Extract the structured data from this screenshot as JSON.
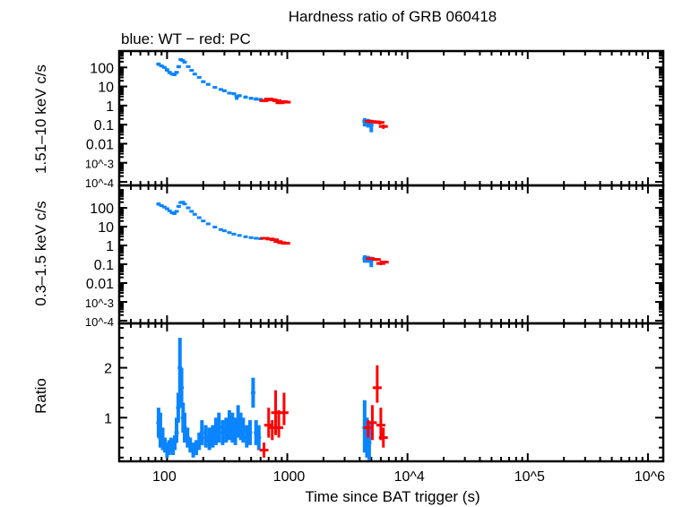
{
  "chart_data": {
    "type": "scatter",
    "title": "Hardness ratio of GRB 060418",
    "subtitle": "blue: WT − red: PC",
    "xlabel": "Time since BAT trigger (s)",
    "xscale": "log",
    "xlim": [
      40,
      1340000
    ],
    "x_tick_labels": [
      "100",
      "1000",
      "10^4",
      "10^5",
      "10^6"
    ],
    "colors": {
      "WT": "#0a84ff",
      "PC": "#ff0000"
    },
    "panels": [
      {
        "ylabel": "1.51–10 keV c/s",
        "yscale": "log",
        "ylim": [
          6.5e-05,
          720
        ],
        "y_tick_labels": [
          "100",
          "10",
          "1",
          "0.1",
          "0.01",
          "10^-3",
          "10^-4"
        ],
        "series": [
          {
            "mode": "WT",
            "points": [
              [
                85,
                150,
                120,
                180
              ],
              [
                90,
                120,
                100,
                140
              ],
              [
                95,
                100,
                85,
                115
              ],
              [
                100,
                75,
                60,
                90
              ],
              [
                105,
                55,
                45,
                65
              ],
              [
                110,
                45,
                38,
                52
              ],
              [
                115,
                42,
                35,
                50
              ],
              [
                120,
                55,
                45,
                65
              ],
              [
                125,
                110,
                90,
                130
              ],
              [
                130,
                260,
                220,
                300
              ],
              [
                135,
                230,
                200,
                260
              ],
              [
                140,
                190,
                160,
                220
              ],
              [
                150,
                110,
                95,
                125
              ],
              [
                160,
                70,
                60,
                80
              ],
              [
                170,
                45,
                38,
                52
              ],
              [
                185,
                30,
                26,
                34
              ],
              [
                200,
                18,
                15,
                21
              ],
              [
                220,
                13,
                11,
                15
              ],
              [
                250,
                9,
                8,
                10.5
              ],
              [
                280,
                7,
                6,
                8
              ],
              [
                300,
                6,
                5,
                7
              ],
              [
                330,
                4.5,
                3.8,
                5.2
              ],
              [
                360,
                4.2,
                3.5,
                5
              ],
              [
                380,
                3,
                2,
                3.5
              ],
              [
                400,
                3.3,
                2.8,
                3.9
              ],
              [
                450,
                2.8,
                2.3,
                3.3
              ],
              [
                500,
                2.4,
                2,
                2.9
              ],
              [
                550,
                2.2,
                1.8,
                2.7
              ],
              [
                600,
                2.1,
                1.7,
                2.5
              ]
            ]
          },
          {
            "mode": "PC",
            "points": [
              [
                640,
                1.8,
                1.5,
                2.1
              ],
              [
                700,
                2.2,
                1.9,
                2.6
              ],
              [
                760,
                2.0,
                1.7,
                2.4
              ],
              [
                820,
                1.8,
                1.5,
                2.1
              ],
              [
                870,
                1.4,
                1.2,
                1.7
              ],
              [
                930,
                1.6,
                1.3,
                1.9
              ],
              [
                980,
                1.5,
                1.3,
                1.8
              ]
            ]
          },
          {
            "mode": "WT",
            "points": [
              [
                4400,
                0.15,
                0.08,
                0.22
              ],
              [
                4700,
                0.14,
                0.07,
                0.2
              ],
              [
                5000,
                0.1,
                0.04,
                0.18
              ]
            ]
          },
          {
            "mode": "PC",
            "points": [
              [
                4800,
                0.15,
                0.12,
                0.18
              ],
              [
                5400,
                0.14,
                0.11,
                0.17
              ],
              [
                5900,
                0.13,
                0.1,
                0.16
              ],
              [
                6300,
                0.08,
                0.06,
                0.1
              ]
            ]
          }
        ]
      },
      {
        "ylabel": "0.3–1.5 keV c/s",
        "yscale": "log",
        "ylim": [
          7.2e-05,
          1550
        ],
        "y_tick_labels": [
          "100",
          "10",
          "1",
          "0.1",
          "0.01",
          "10^-3",
          "10^-4"
        ],
        "series": [
          {
            "mode": "WT",
            "points": [
              [
                85,
                160,
                130,
                190
              ],
              [
                90,
                130,
                110,
                150
              ],
              [
                95,
                110,
                95,
                125
              ],
              [
                100,
                90,
                75,
                105
              ],
              [
                105,
                70,
                60,
                80
              ],
              [
                110,
                55,
                46,
                64
              ],
              [
                115,
                50,
                42,
                58
              ],
              [
                120,
                65,
                55,
                75
              ],
              [
                125,
                120,
                100,
                140
              ],
              [
                130,
                190,
                165,
                215
              ],
              [
                135,
                200,
                175,
                225
              ],
              [
                140,
                160,
                140,
                180
              ],
              [
                150,
                100,
                88,
                112
              ],
              [
                160,
                65,
                57,
                73
              ],
              [
                170,
                45,
                40,
                50
              ],
              [
                185,
                30,
                27,
                33
              ],
              [
                200,
                20,
                18,
                22
              ],
              [
                220,
                14,
                12.5,
                15.5
              ],
              [
                250,
                9.5,
                8.5,
                10.5
              ],
              [
                280,
                7,
                6.3,
                7.7
              ],
              [
                300,
                6,
                5.4,
                6.6
              ],
              [
                330,
                4.8,
                4.2,
                5.4
              ],
              [
                360,
                4.0,
                3.5,
                4.5
              ],
              [
                400,
                3.4,
                3,
                3.8
              ],
              [
                450,
                2.9,
                2.6,
                3.2
              ],
              [
                500,
                2.6,
                2.3,
                2.9
              ],
              [
                550,
                2.4,
                2.1,
                2.7
              ],
              [
                600,
                2.3,
                2.0,
                2.6
              ]
            ]
          },
          {
            "mode": "PC",
            "points": [
              [
                650,
                2.4,
                2.2,
                2.6
              ],
              [
                720,
                2.2,
                2.0,
                2.4
              ],
              [
                780,
                2.0,
                1.8,
                2.2
              ],
              [
                840,
                1.6,
                1.45,
                1.75
              ],
              [
                900,
                1.4,
                1.25,
                1.55
              ],
              [
                970,
                1.3,
                1.15,
                1.45
              ]
            ]
          },
          {
            "mode": "WT",
            "points": [
              [
                4400,
                0.2,
                0.12,
                0.3
              ],
              [
                4700,
                0.2,
                0.12,
                0.28
              ],
              [
                5000,
                0.17,
                0.07,
                0.25
              ]
            ]
          },
          {
            "mode": "PC",
            "points": [
              [
                4900,
                0.2,
                0.17,
                0.23
              ],
              [
                5500,
                0.18,
                0.15,
                0.21
              ],
              [
                6000,
                0.11,
                0.09,
                0.13
              ],
              [
                6400,
                0.13,
                0.11,
                0.15
              ]
            ]
          }
        ]
      },
      {
        "ylabel": "Ratio",
        "yscale": "linear",
        "ylim": [
          0.125,
          2.89
        ],
        "y_tick_labels": [
          "2",
          "1"
        ],
        "y_ticks": [
          2,
          1
        ],
        "series": [
          {
            "mode": "WT",
            "points": [
              [
                85,
                0.9,
                0.6,
                1.2
              ],
              [
                88,
                0.6,
                0.4,
                1.1
              ],
              [
                92,
                0.5,
                0.35,
                0.8
              ],
              [
                96,
                0.45,
                0.3,
                0.6
              ],
              [
                100,
                0.35,
                0.2,
                0.5
              ],
              [
                104,
                0.4,
                0.25,
                0.55
              ],
              [
                108,
                0.45,
                0.3,
                0.6
              ],
              [
                112,
                0.4,
                0.25,
                0.55
              ],
              [
                116,
                0.5,
                0.35,
                0.65
              ],
              [
                120,
                0.7,
                0.5,
                1.0
              ],
              [
                124,
                1.2,
                0.9,
                1.5
              ],
              [
                128,
                2.0,
                1.5,
                2.6
              ],
              [
                132,
                1.6,
                1.2,
                2.0
              ],
              [
                136,
                1.0,
                0.7,
                1.3
              ],
              [
                140,
                0.8,
                0.5,
                1.1
              ],
              [
                148,
                0.6,
                0.4,
                0.8
              ],
              [
                156,
                0.45,
                0.3,
                0.6
              ],
              [
                165,
                0.35,
                0.2,
                0.5
              ],
              [
                175,
                0.4,
                0.25,
                0.55
              ],
              [
                185,
                0.5,
                0.35,
                0.7
              ],
              [
                195,
                0.7,
                0.45,
                0.95
              ],
              [
                210,
                0.6,
                0.4,
                0.85
              ],
              [
                225,
                0.55,
                0.35,
                0.8
              ],
              [
                240,
                0.6,
                0.4,
                0.85
              ],
              [
                255,
                0.7,
                0.45,
                1.0
              ],
              [
                270,
                0.8,
                0.5,
                1.1
              ],
              [
                290,
                0.7,
                0.45,
                0.95
              ],
              [
                310,
                0.75,
                0.5,
                1.0
              ],
              [
                330,
                0.85,
                0.55,
                1.15
              ],
              [
                350,
                0.8,
                0.5,
                1.1
              ],
              [
                370,
                0.7,
                0.45,
                1.0
              ],
              [
                390,
                0.9,
                0.6,
                1.25
              ],
              [
                410,
                0.8,
                0.55,
                1.1
              ],
              [
                430,
                0.75,
                0.5,
                1.0
              ],
              [
                460,
                0.6,
                0.4,
                0.85
              ],
              [
                490,
                0.7,
                0.45,
                0.95
              ],
              [
                520,
                1.5,
                1.2,
                1.8
              ],
              [
                550,
                0.7,
                0.45,
                0.95
              ],
              [
                580,
                0.6,
                0.35,
                0.85
              ]
            ]
          },
          {
            "mode": "PC",
            "points": [
              [
                640,
                0.35,
                0.2,
                0.5
              ],
              [
                700,
                0.85,
                0.6,
                1.2
              ],
              [
                750,
                0.8,
                0.55,
                0.95
              ],
              [
                800,
                1.1,
                0.65,
                1.55
              ],
              [
                850,
                0.8,
                0.6,
                1.15
              ],
              [
                940,
                1.1,
                0.85,
                1.5
              ]
            ]
          },
          {
            "mode": "WT",
            "points": [
              [
                4400,
                0.8,
                0.3,
                1.35
              ],
              [
                4600,
                0.6,
                0.2,
                1.0
              ],
              [
                4800,
                0.5,
                0.15,
                0.9
              ]
            ]
          },
          {
            "mode": "PC",
            "points": [
              [
                4700,
                0.8,
                0.6,
                0.95
              ],
              [
                5100,
                0.9,
                0.55,
                1.25
              ],
              [
                5600,
                1.6,
                1.3,
                2.05
              ],
              [
                6000,
                0.85,
                0.55,
                1.2
              ],
              [
                6300,
                0.6,
                0.4,
                0.8
              ]
            ]
          }
        ]
      }
    ]
  }
}
